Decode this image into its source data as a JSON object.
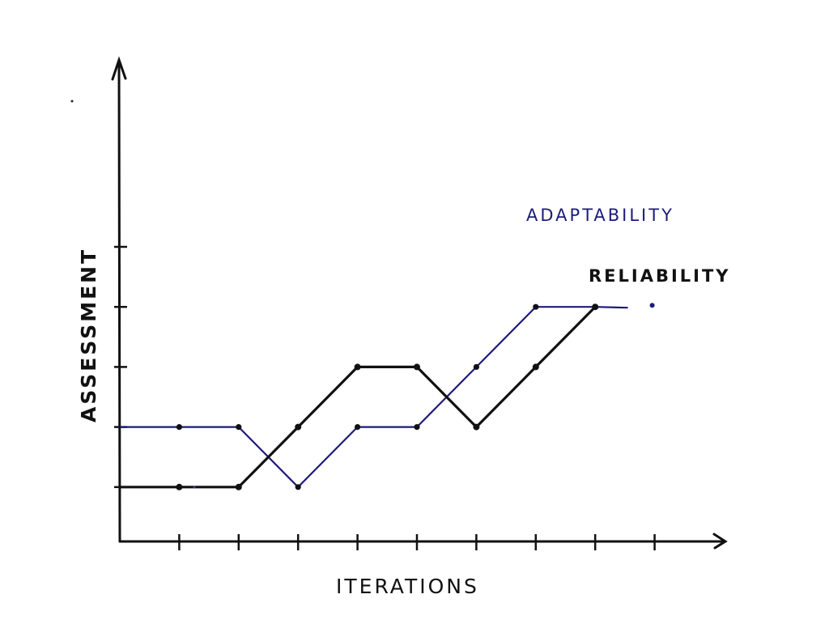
{
  "chart_data": {
    "type": "line",
    "title": "",
    "xlabel": "ITERATIONS",
    "ylabel": "ASSESSMENT",
    "x": [
      0,
      1,
      2,
      3,
      4,
      5,
      6,
      7,
      8,
      9
    ],
    "x_ticks": 9,
    "y_ticks": 5,
    "ylim": [
      0,
      5
    ],
    "grid": false,
    "legend_position": "inline labels near line ends (upper right)",
    "series": [
      {
        "name": "ADAPTABILITY",
        "color": "#1c1c7a",
        "x": [
          0,
          1,
          2,
          3,
          4,
          5,
          6,
          7,
          8
        ],
        "values": [
          2,
          2,
          2,
          1,
          2,
          2,
          3,
          4,
          4
        ],
        "extra_point": {
          "x": 9,
          "y": 4
        }
      },
      {
        "name": "RELIABILITY",
        "color": "#111111",
        "x": [
          0,
          1,
          2,
          3,
          4,
          5,
          6,
          7,
          8
        ],
        "values": [
          1,
          1,
          1,
          2,
          3,
          3,
          2,
          3,
          4
        ]
      }
    ]
  },
  "labels": {
    "xlabel": "ITERATIONS",
    "ylabel": "ASSESSMENT",
    "series_a": "ADAPTABILITY",
    "series_b": "RELIABILITY"
  },
  "colors": {
    "axis": "#111111",
    "adaptability": "#1c1c7a",
    "reliability": "#111111"
  }
}
